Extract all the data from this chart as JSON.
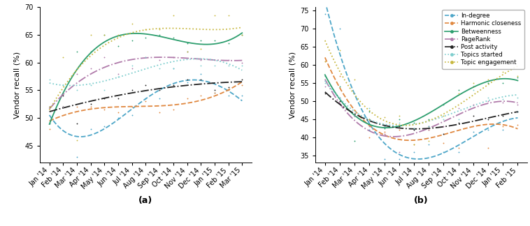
{
  "x_labels_a": [
    "Jan '14",
    "Feb '14",
    "Mar '14",
    "Apr '14",
    "May '14",
    "Jun '14",
    "Jul '14",
    "Aug '14",
    "Sep '14",
    "Oct '14",
    "Nov '14",
    "Dec '14",
    "Jan '15",
    "Feb '15",
    "Mar '15"
  ],
  "x_labels_b": [
    "Jan '14",
    "Feb '14",
    "Mar '14",
    "Apr '14",
    "May '14",
    "Jun '14",
    "Jul '14",
    "Aug '14",
    "Sep '14",
    "Oct '14",
    "Nov '14",
    "Dec '14",
    "Jan '15",
    "Feb '15"
  ],
  "n_a": 15,
  "n_b": 14,
  "a_indegree_pts": [
    49.0,
    52.0,
    43.0,
    48.0,
    48.5,
    50.0,
    50.5,
    53.5,
    53.5,
    59.0,
    56.5,
    58.0,
    54.5,
    54.0,
    54.0
  ],
  "a_harmonic_pts": [
    48.0,
    52.0,
    52.0,
    52.0,
    51.5,
    51.0,
    52.0,
    53.0,
    51.0,
    51.5,
    53.5,
    54.0,
    54.5,
    55.0,
    56.0
  ],
  "a_betweenness_pts": [
    49.0,
    52.0,
    62.0,
    62.0,
    65.0,
    63.0,
    64.0,
    64.5,
    65.0,
    64.5,
    63.5,
    64.0,
    64.0,
    63.5,
    65.0
  ],
  "a_pagerank_pts": [
    52.0,
    52.0,
    58.0,
    59.0,
    61.0,
    58.0,
    59.0,
    61.0,
    60.5,
    61.0,
    62.0,
    60.5,
    60.5,
    60.5,
    60.0
  ],
  "a_postact_pts": [
    52.0,
    54.0,
    49.0,
    52.5,
    53.5,
    53.5,
    55.0,
    56.0,
    55.0,
    56.0,
    57.0,
    57.0,
    55.0,
    55.5,
    57.0
  ],
  "a_topicstart_pts": [
    57.0,
    56.0,
    55.0,
    56.0,
    55.0,
    57.5,
    59.5,
    61.0,
    59.0,
    59.0,
    62.0,
    59.5,
    59.5,
    59.5,
    59.5
  ],
  "a_topiceng_pts": [
    52.0,
    61.0,
    46.0,
    65.0,
    65.0,
    65.0,
    67.0,
    66.0,
    66.0,
    68.5,
    62.0,
    62.5,
    68.5,
    68.5,
    65.0
  ],
  "b_indegree_pts": [
    74.0,
    70.0,
    52.0,
    42.0,
    34.0,
    34.0,
    36.0,
    38.0,
    36.0,
    36.0,
    41.5,
    42.0,
    42.0,
    47.0
  ],
  "b_harmonic_pts": [
    61.0,
    57.0,
    46.0,
    40.0,
    41.5,
    42.0,
    38.0,
    42.0,
    38.5,
    37.0,
    54.0,
    37.0,
    43.0,
    43.5
  ],
  "b_betweenness_pts": [
    57.0,
    54.0,
    39.0,
    47.0,
    42.5,
    45.0,
    44.0,
    45.0,
    49.0,
    53.0,
    54.0,
    55.0,
    55.0,
    56.5
  ],
  "b_pagerank_pts": [
    54.0,
    51.0,
    46.0,
    43.0,
    41.0,
    36.0,
    42.0,
    42.0,
    43.0,
    48.0,
    49.0,
    50.0,
    49.5,
    49.0
  ],
  "b_postact_pts": [
    52.0,
    50.0,
    46.0,
    45.0,
    43.0,
    43.0,
    42.0,
    43.0,
    41.0,
    44.0,
    46.0,
    45.0,
    46.0,
    47.0
  ],
  "b_topicstart_pts": [
    55.0,
    51.0,
    46.0,
    48.0,
    43.0,
    44.0,
    42.5,
    43.0,
    45.0,
    45.0,
    53.0,
    51.0,
    50.5,
    51.0
  ],
  "b_topiceng_pts": [
    61.0,
    64.0,
    56.0,
    45.0,
    45.5,
    46.0,
    38.0,
    39.0,
    46.0,
    52.0,
    55.0,
    56.0,
    58.0,
    57.0
  ],
  "color_indegree": "#4da6c8",
  "color_harmonic": "#e08840",
  "color_between": "#2d9e6e",
  "color_pagerank": "#b07aaa",
  "color_postact": "#222222",
  "color_topicstart": "#7ecece",
  "color_topiceng": "#c8b840",
  "ls_indegree": "--",
  "ls_harmonic": "--",
  "ls_between": "-",
  "ls_pagerank": "-.",
  "ls_postact": "-.",
  "ls_topicstart": ":",
  "ls_topiceng": ":",
  "poly_deg_a": 4,
  "poly_deg_b": 4,
  "ylabel": "Vendor recall (%)",
  "ylim_a": [
    42,
    70
  ],
  "ylim_b": [
    33,
    76
  ],
  "yticks_a": [
    45,
    50,
    55,
    60,
    65,
    70
  ],
  "yticks_b": [
    35,
    40,
    45,
    50,
    55,
    60,
    65,
    70,
    75
  ],
  "label_a": "(a)",
  "label_b": "(b)",
  "legend_labels": [
    "In-degree",
    "Harmonic closeness",
    "Betweenness",
    "PageRank",
    "Post activity",
    "Topics started",
    "Topic engagement"
  ]
}
